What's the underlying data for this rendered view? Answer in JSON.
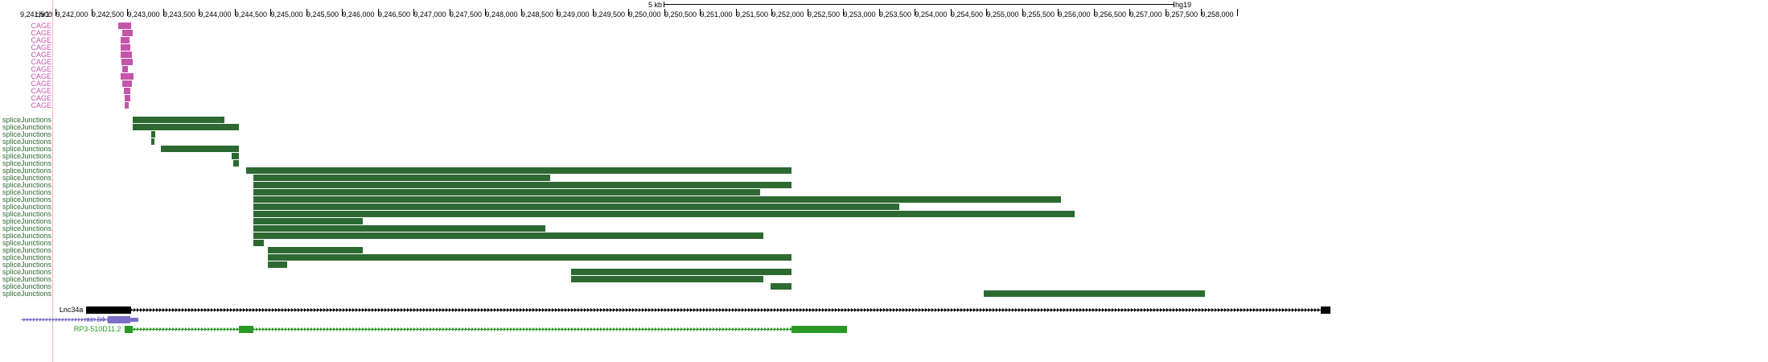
{
  "ruler": {
    "chrom": "chr1:",
    "scale_label": "5 kb",
    "assembly": "hg19",
    "positions": [
      "9,241,500",
      "9,242,000",
      "9,242,500",
      "9,243,000",
      "9,243,500",
      "9,244,000",
      "9,244,500",
      "9,245,000",
      "9,245,500",
      "9,246,000",
      "9,246,500",
      "9,247,000",
      "9,247,500",
      "9,248,000",
      "9,248,500",
      "9,249,000",
      "9,249,500",
      "9,250,000",
      "9,250,500",
      "9,251,000",
      "9,251,500",
      "9,252,000",
      "9,252,500",
      "9,253,000",
      "9,253,500",
      "9,254,000",
      "9,254,500",
      "9,255,000",
      "9,255,500",
      "9,256,000",
      "9,256,500",
      "9,257,000",
      "9,257,500",
      "9,258,000"
    ]
  },
  "tracks": {
    "cage_label": "CAGE",
    "cage_color": "#c455a8",
    "cage_features": [
      {
        "start": 9242370,
        "end": 9242550
      },
      {
        "start": 9242420,
        "end": 9242570
      },
      {
        "start": 9242400,
        "end": 9242520
      },
      {
        "start": 9242400,
        "end": 9242530
      },
      {
        "start": 9242400,
        "end": 9242560
      },
      {
        "start": 9242410,
        "end": 9242570
      },
      {
        "start": 9242420,
        "end": 9242500
      },
      {
        "start": 9242400,
        "end": 9242580
      },
      {
        "start": 9242420,
        "end": 9242560
      },
      {
        "start": 9242440,
        "end": 9242530
      },
      {
        "start": 9242450,
        "end": 9242530
      },
      {
        "start": 9242450,
        "end": 9242510
      }
    ],
    "splice_label": "spliceJunctions",
    "splice_color": "#2d6a31",
    "splice_features": [
      {
        "start": 9242570,
        "end": 9243850
      },
      {
        "start": 9242570,
        "end": 9244050
      },
      {
        "start": 9242830,
        "end": 9242880
      },
      {
        "start": 9242830,
        "end": 9242870
      },
      {
        "start": 9242960,
        "end": 9244050
      },
      {
        "start": 9243950,
        "end": 9244050
      },
      {
        "start": 9243970,
        "end": 9244050
      },
      {
        "start": 9244150,
        "end": 9251770
      },
      {
        "start": 9244250,
        "end": 9248400
      },
      {
        "start": 9244250,
        "end": 9251770
      },
      {
        "start": 9244250,
        "end": 9251330
      },
      {
        "start": 9244250,
        "end": 9255530
      },
      {
        "start": 9244250,
        "end": 9253280
      },
      {
        "start": 9244250,
        "end": 9255730
      },
      {
        "start": 9244250,
        "end": 9245780
      },
      {
        "start": 9244250,
        "end": 9248330
      },
      {
        "start": 9244250,
        "end": 9251380
      },
      {
        "start": 9244250,
        "end": 9244400
      },
      {
        "start": 9244450,
        "end": 9245780
      },
      {
        "start": 9244450,
        "end": 9251770
      },
      {
        "start": 9244450,
        "end": 9244720
      },
      {
        "start": 9248690,
        "end": 9251770
      },
      {
        "start": 9248690,
        "end": 9251380
      },
      {
        "start": 9251480,
        "end": 9251770
      },
      {
        "start": 9254460,
        "end": 9257550
      }
    ],
    "genes": [
      {
        "name": "Lnc34a",
        "color": "#000000",
        "start": 9241920,
        "end": 9259300,
        "exons": [
          {
            "start": 9241920,
            "end": 9242540
          },
          {
            "start": 9259160,
            "end": 9259300
          }
        ]
      },
      {
        "name": "mir-34",
        "color": "#7a70c4",
        "start": 9241000,
        "end": 9242650,
        "exons": [
          {
            "start": 9242220,
            "end": 9242530
          },
          {
            "start": 9242530,
            "end": 9242650
          }
        ]
      },
      {
        "name": "RP3-510D11.2",
        "color": "#2a9a25",
        "start": 9242450,
        "end": 9252550,
        "exons": [
          {
            "start": 9242450,
            "end": 9242570
          },
          {
            "start": 9244050,
            "end": 9244250
          },
          {
            "start": 9251770,
            "end": 9252550
          }
        ]
      }
    ]
  }
}
